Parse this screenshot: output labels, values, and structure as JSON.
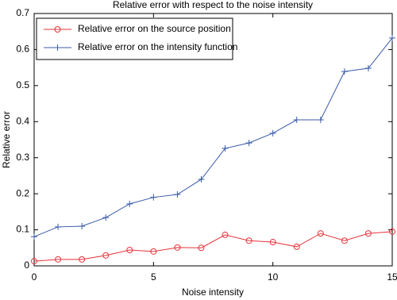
{
  "chart_data": {
    "type": "line",
    "title": "Relative error with respect to the noise intensity",
    "x_label": "Noise intensity",
    "y_label": "Relative error",
    "x": [
      0,
      1,
      2,
      3,
      4,
      5,
      6,
      7,
      8,
      9,
      10,
      11,
      12,
      13,
      14,
      15
    ],
    "series": [
      {
        "name": "Relative error on the source position",
        "color": "#e8333a",
        "marker": "circle",
        "values": [
          0.013,
          0.018,
          0.018,
          0.029,
          0.044,
          0.04,
          0.051,
          0.05,
          0.086,
          0.07,
          0.066,
          0.053,
          0.09,
          0.07,
          0.09,
          0.095
        ]
      },
      {
        "name": "Relative error on the intensity function",
        "color": "#3a5aa8",
        "marker": "plus",
        "values": [
          0.081,
          0.108,
          0.11,
          0.134,
          0.172,
          0.19,
          0.198,
          0.24,
          0.326,
          0.341,
          0.368,
          0.405,
          0.405,
          0.539,
          0.548,
          0.632
        ]
      }
    ],
    "xlim": [
      0,
      15
    ],
    "xticks": [
      0,
      5,
      10,
      15
    ],
    "ylim": [
      0,
      0.7
    ],
    "yticks": [
      0,
      0.1,
      0.2,
      0.3,
      0.4,
      0.5,
      0.6,
      0.7
    ],
    "legend": "upper-left"
  }
}
